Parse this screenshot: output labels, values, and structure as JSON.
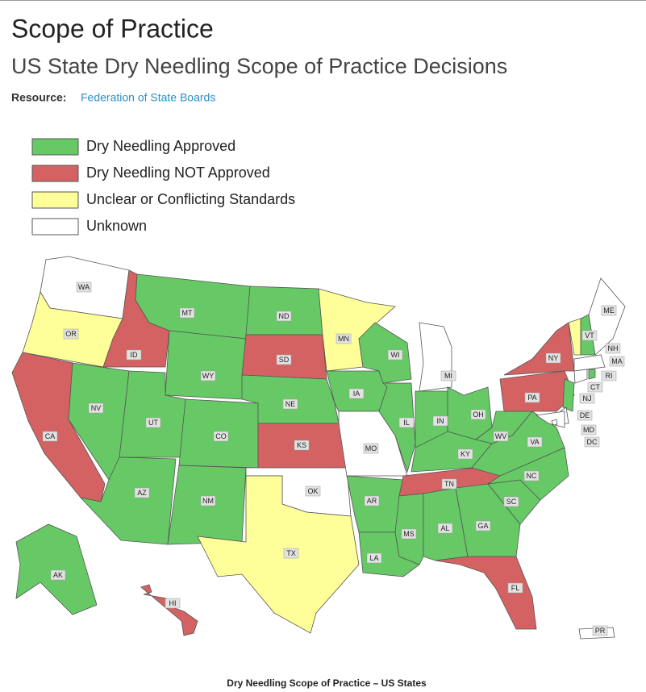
{
  "header": {
    "title": "Scope of Practice",
    "subtitle": "US State Dry Needling Scope of Practice Decisions",
    "resource_label": "Resource:",
    "resource_link": "Federation of State Boards"
  },
  "legend": [
    {
      "label": "Dry Needling Approved",
      "color": "#66c966"
    },
    {
      "label": "Dry Needling NOT Approved",
      "color": "#d46262"
    },
    {
      "label": "Unclear or Conflicting Standards",
      "color": "#ffff99"
    },
    {
      "label": "Unknown",
      "color": "#ffffff"
    }
  ],
  "states": [
    {
      "code": "WA",
      "status": 3
    },
    {
      "code": "OR",
      "status": 2
    },
    {
      "code": "ID",
      "status": 1
    },
    {
      "code": "MT",
      "status": 0
    },
    {
      "code": "WY",
      "status": 0
    },
    {
      "code": "CA",
      "status": 1
    },
    {
      "code": "NV",
      "status": 0
    },
    {
      "code": "UT",
      "status": 0
    },
    {
      "code": "AZ",
      "status": 0
    },
    {
      "code": "CO",
      "status": 0
    },
    {
      "code": "NM",
      "status": 0
    },
    {
      "code": "ND",
      "status": 0
    },
    {
      "code": "SD",
      "status": 1
    },
    {
      "code": "NE",
      "status": 0
    },
    {
      "code": "KS",
      "status": 1
    },
    {
      "code": "OK",
      "status": 3
    },
    {
      "code": "TX",
      "status": 2
    },
    {
      "code": "MN",
      "status": 2
    },
    {
      "code": "IA",
      "status": 0
    },
    {
      "code": "MO",
      "status": 3
    },
    {
      "code": "AR",
      "status": 0
    },
    {
      "code": "LA",
      "status": 0
    },
    {
      "code": "WI",
      "status": 0
    },
    {
      "code": "IL",
      "status": 0
    },
    {
      "code": "MI",
      "status": 3
    },
    {
      "code": "IN",
      "status": 0
    },
    {
      "code": "OH",
      "status": 0
    },
    {
      "code": "KY",
      "status": 0
    },
    {
      "code": "TN",
      "status": 1
    },
    {
      "code": "MS",
      "status": 0
    },
    {
      "code": "AL",
      "status": 0
    },
    {
      "code": "GA",
      "status": 0
    },
    {
      "code": "FL",
      "status": 1
    },
    {
      "code": "SC",
      "status": 0
    },
    {
      "code": "NC",
      "status": 0
    },
    {
      "code": "VA",
      "status": 0
    },
    {
      "code": "WV",
      "status": 0
    },
    {
      "code": "PA",
      "status": 1
    },
    {
      "code": "NY",
      "status": 1
    },
    {
      "code": "VT",
      "status": 2
    },
    {
      "code": "NH",
      "status": 0
    },
    {
      "code": "ME",
      "status": 3
    },
    {
      "code": "MA",
      "status": 3
    },
    {
      "code": "CT",
      "status": 3
    },
    {
      "code": "RI",
      "status": 0
    },
    {
      "code": "NJ",
      "status": 0
    },
    {
      "code": "DE",
      "status": 3
    },
    {
      "code": "MD",
      "status": 3
    },
    {
      "code": "DC",
      "status": 3
    },
    {
      "code": "AK",
      "status": 0
    },
    {
      "code": "HI",
      "status": 1
    },
    {
      "code": "PR",
      "status": 3
    }
  ],
  "caption": "Dry Needling Scope of Practice – US States"
}
